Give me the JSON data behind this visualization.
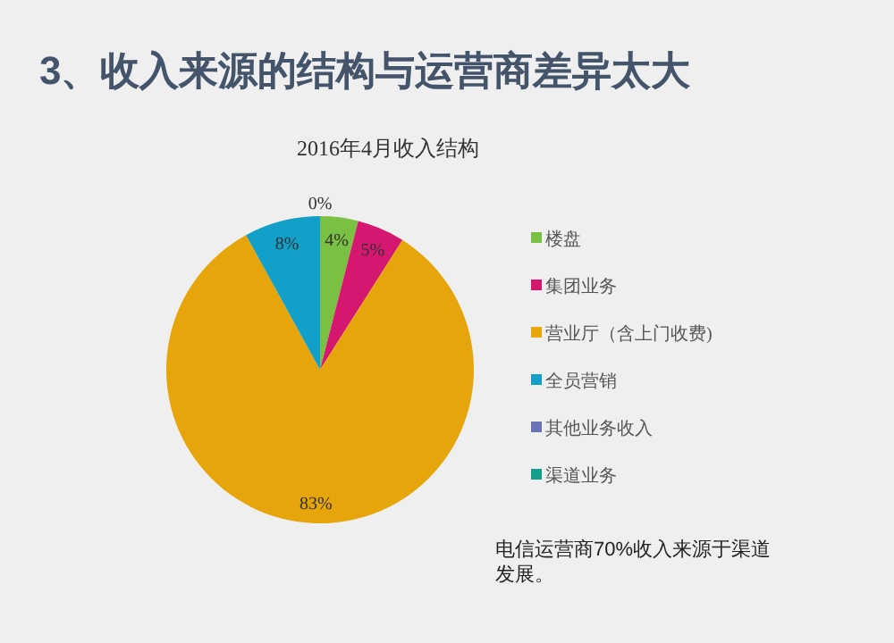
{
  "chart_data": {
    "type": "pie",
    "title": "3、收入来源的结构与运营商差异太大",
    "subtitle": "2016年4月收入结构",
    "categories": [
      "楼盘",
      "集团业务",
      "营业厅（含上门收费)",
      "全员营销",
      "其他业务收入",
      "渠道业务"
    ],
    "values": [
      4,
      5,
      83,
      8,
      0,
      0
    ],
    "value_labels": [
      "4%",
      "5%",
      "83%",
      "8%",
      "0%",
      null
    ],
    "colors": [
      "#7ac143",
      "#d6176f",
      "#e6a50a",
      "#129fc8",
      "#6a72b8",
      "#14a08a"
    ],
    "legend": "right",
    "annotations": [
      "电信运营商70%收入来源于渠道发展。"
    ]
  }
}
